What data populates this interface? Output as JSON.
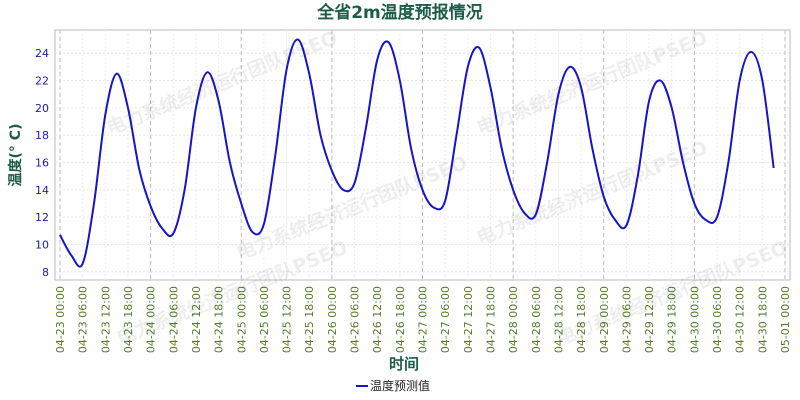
{
  "chart_data": {
    "type": "line",
    "title": "全省2m温度预报情况",
    "x_label": "时间",
    "y_label": "温度(° C)",
    "watermark": "电力系统经济运行团队PSEO",
    "categories": [
      "04-23 00:00",
      null,
      "04-23 06:00",
      null,
      "04-23 12:00",
      null,
      "04-23 18:00",
      null,
      "04-24 00:00",
      null,
      "04-24 06:00",
      null,
      "04-24 12:00",
      null,
      "04-24 18:00",
      null,
      "04-25 00:00",
      null,
      "04-25 06:00",
      null,
      "04-25 12:00",
      null,
      "04-25 18:00",
      null,
      "04-26 00:00",
      null,
      "04-26 06:00",
      null,
      "04-26 12:00",
      null,
      "04-26 18:00",
      null,
      "04-27 00:00",
      null,
      "04-27 06:00",
      null,
      "04-27 12:00",
      null,
      "04-27 18:00",
      null,
      "04-28 00:00",
      null,
      "04-28 06:00",
      null,
      "04-28 12:00",
      null,
      "04-28 18:00",
      null,
      "04-29 00:00",
      null,
      "04-29 06:00",
      null,
      "04-29 12:00",
      null,
      "04-29 18:00",
      null,
      "04-30 00:00",
      null,
      "04-30 06:00",
      null,
      "04-30 12:00",
      null,
      "04-30 18:00",
      null,
      "05-01 00:00"
    ],
    "series": [
      {
        "name": "温度预测值",
        "color": "#1414c8",
        "values": [
          10.7,
          9.2,
          8.6,
          13,
          19.5,
          22.5,
          20,
          15.5,
          12.8,
          11.2,
          10.8,
          14,
          20,
          22.6,
          20.5,
          16,
          13,
          10.9,
          11.5,
          16.5,
          22.8,
          25,
          22.5,
          18,
          15.4,
          14,
          14.5,
          18.5,
          23.5,
          24.8,
          22,
          17,
          14,
          12.7,
          13.2,
          18,
          23,
          24.4,
          21.5,
          17,
          14,
          12.3,
          12.2,
          16,
          21,
          23,
          21.5,
          17,
          13.5,
          11.8,
          11.4,
          15,
          20.5,
          22,
          20,
          16,
          13,
          11.8,
          12,
          16,
          22,
          24.1,
          22,
          15.6,
          null
        ]
      }
    ],
    "ylim": [
      7.4,
      25.7
    ],
    "yticks": [
      8,
      10,
      12,
      14,
      16,
      18,
      20,
      22,
      24
    ],
    "grid": true
  }
}
